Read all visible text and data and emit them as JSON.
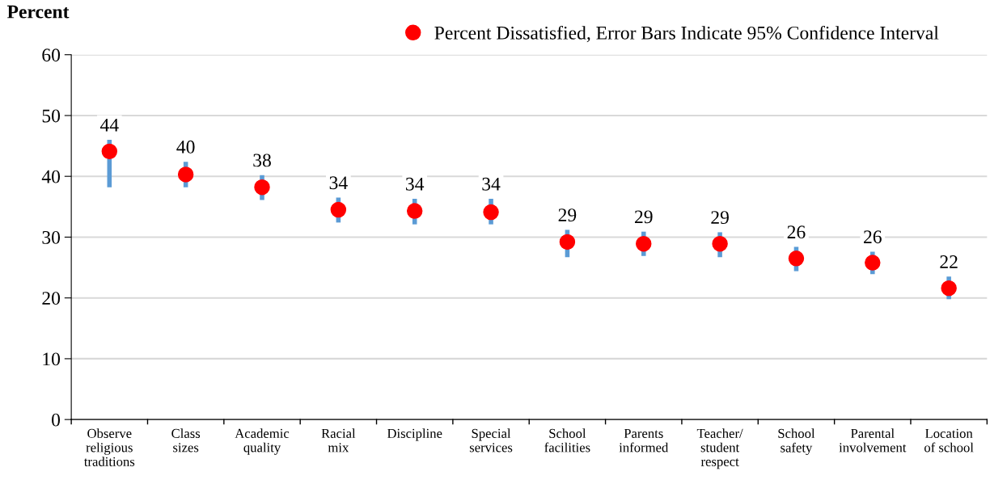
{
  "chart_data": {
    "type": "scatter",
    "ylabel": "Percent",
    "categories": [
      "Observe\nreligious\ntraditions",
      "Class\nsizes",
      "Academic\nquality",
      "Racial\nmix",
      "Discipline",
      "Special\nservices",
      "School\nfacilities",
      "Parents\ninformed",
      "Teacher/\nstudent\nrespect",
      "School\nsafety",
      "Parental\ninvolvement",
      "Location\nof school"
    ],
    "series": [
      {
        "name": "Percent Dissatisfied, Error Bars Indicate 95% Confidence Interval",
        "color": "#ff0000",
        "values": [
          44.1,
          40.3,
          38.2,
          34.5,
          34.3,
          34.1,
          29.2,
          28.9,
          28.9,
          26.5,
          25.8,
          21.6
        ],
        "errors": [
          [
            38.2,
            46.0
          ],
          [
            38.2,
            42.4
          ],
          [
            36.1,
            40.2
          ],
          [
            32.4,
            36.5
          ],
          [
            32.1,
            36.3
          ],
          [
            32.1,
            36.3
          ],
          [
            26.7,
            31.2
          ],
          [
            26.9,
            30.9
          ],
          [
            26.7,
            30.8
          ],
          [
            24.4,
            28.4
          ],
          [
            23.9,
            27.6
          ],
          [
            19.8,
            23.5
          ]
        ],
        "value_labels": [
          "44",
          "40",
          "38",
          "34",
          "34",
          "34",
          "29",
          "29",
          "29",
          "26",
          "26",
          "22"
        ]
      }
    ],
    "ylim": [
      0,
      60
    ],
    "yticks": [
      0,
      10,
      20,
      30,
      40,
      50,
      60
    ],
    "grid": "y",
    "legend": "top right",
    "marker": "circle"
  }
}
